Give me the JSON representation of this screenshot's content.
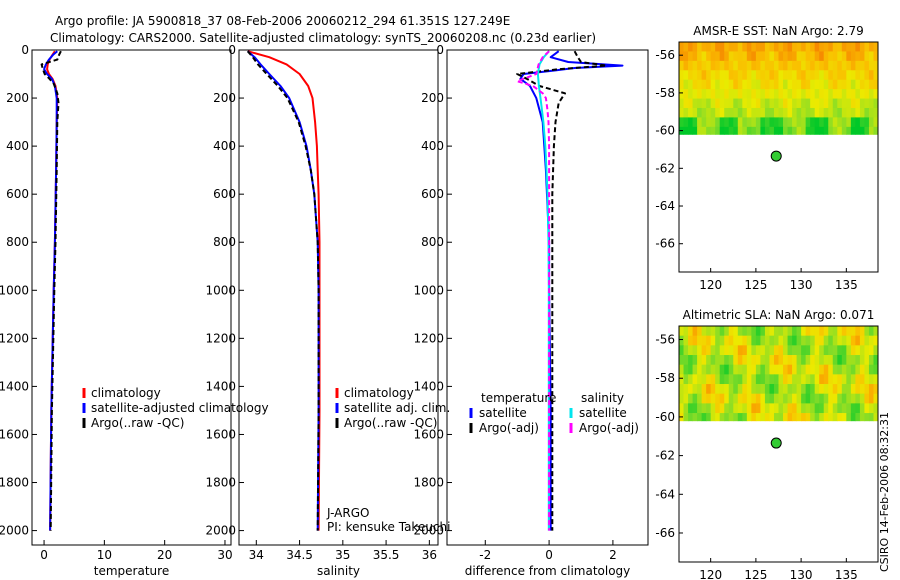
{
  "header": {
    "line1": "Argo profile: JA 5900818_37 08-Feb-2006 20060212_294 61.351S 127.249E",
    "line2": "Climatology: CARS2000. Satellite-adjusted climatology: synTS_20060208.nc (0.23d earlier)"
  },
  "credit": "CSIRO 14-Feb-2006 08:32:31",
  "colors": {
    "climatology": "#ff0000",
    "satellite": "#0000ff",
    "argo": "#000000",
    "salinity_satellite": "#00e5ee",
    "salinity_argo": "#ff00ff",
    "map_masked": "#ffffff",
    "float_marker": "#33cc33"
  },
  "chart_data": [
    {
      "type": "line",
      "id": "temperature",
      "xlabel": "temperature",
      "ylabel": "",
      "xlim": [
        -2,
        31
      ],
      "ylim": [
        2060,
        0
      ],
      "xticks": [
        0,
        10,
        20,
        30
      ],
      "yticks": [
        0,
        200,
        400,
        600,
        800,
        1000,
        1200,
        1400,
        1600,
        1800,
        2000
      ],
      "series": [
        {
          "name": "climatology",
          "color": "#ff0000",
          "dash": "",
          "depth": [
            5,
            20,
            40,
            60,
            80,
            100,
            120,
            150,
            200,
            300,
            500,
            800,
            1000,
            1500,
            2000
          ],
          "values": [
            1.8,
            1.4,
            0.9,
            0.6,
            0.5,
            0.8,
            1.4,
            1.9,
            2.2,
            2.1,
            2.0,
            1.8,
            1.6,
            1.2,
            1.0
          ]
        },
        {
          "name": "satellite-adjusted climatology",
          "color": "#0000ff",
          "dash": "",
          "depth": [
            5,
            20,
            40,
            60,
            80,
            100,
            120,
            150,
            200,
            300,
            500,
            800,
            1000,
            1500,
            2000
          ],
          "values": [
            2.2,
            1.5,
            0.8,
            0.3,
            0.0,
            0.5,
            1.3,
            1.8,
            2.1,
            2.1,
            2.0,
            1.8,
            1.6,
            1.2,
            1.0
          ]
        },
        {
          "name": "Argo(..raw -QC)",
          "color": "#000000",
          "dash": "5,3",
          "depth": [
            5,
            20,
            40,
            60,
            80,
            100,
            120,
            140,
            160,
            180,
            220,
            300,
            500,
            800,
            1000,
            1500,
            2000
          ],
          "values": [
            2.8,
            2.5,
            2.2,
            -0.4,
            -0.2,
            0.1,
            0.9,
            1.6,
            1.9,
            2.2,
            2.4,
            2.2,
            2.1,
            1.9,
            1.7,
            1.3,
            1.1
          ]
        }
      ],
      "legend": {
        "placement": "lower-right",
        "entries": [
          "climatology",
          "satellite-adjusted climatology",
          "Argo(..raw -QC)"
        ]
      }
    },
    {
      "type": "line",
      "id": "salinity",
      "xlabel": "salinity",
      "ylabel": "",
      "xlim": [
        33.8,
        36.1
      ],
      "ylim": [
        2060,
        0
      ],
      "xticks": [
        34,
        34.5,
        35,
        35.5,
        36
      ],
      "yticks": [
        0,
        200,
        400,
        600,
        800,
        1000,
        1200,
        1400,
        1600,
        1800,
        2000
      ],
      "series": [
        {
          "name": "climatology",
          "color": "#ff0000",
          "dash": "",
          "depth": [
            5,
            30,
            60,
            100,
            150,
            200,
            300,
            400,
            500,
            600,
            800,
            1000,
            1500,
            2000
          ],
          "values": [
            33.9,
            34.15,
            34.35,
            34.5,
            34.6,
            34.65,
            34.68,
            34.7,
            34.71,
            34.72,
            34.73,
            34.73,
            34.73,
            34.72
          ]
        },
        {
          "name": "satellite adj. clim.",
          "color": "#0000ff",
          "dash": "",
          "depth": [
            5,
            30,
            60,
            100,
            150,
            200,
            300,
            400,
            500,
            600,
            800,
            1000,
            1500,
            2000
          ],
          "values": [
            33.9,
            33.98,
            34.05,
            34.15,
            34.28,
            34.38,
            34.5,
            34.58,
            34.63,
            34.67,
            34.71,
            34.72,
            34.72,
            34.71
          ]
        },
        {
          "name": "Argo(..raw -QC)",
          "color": "#000000",
          "dash": "5,3",
          "depth": [
            5,
            30,
            60,
            100,
            150,
            200,
            300,
            400,
            500,
            600,
            800,
            1000,
            1500,
            2000
          ],
          "values": [
            33.9,
            33.96,
            34.02,
            34.12,
            34.25,
            34.36,
            34.49,
            34.57,
            34.63,
            34.67,
            34.71,
            34.72,
            34.72,
            34.71
          ]
        }
      ],
      "legend": {
        "placement": "lower-right",
        "entries": [
          "climatology",
          "satellite adj. clim.",
          "Argo(..raw -QC)"
        ]
      },
      "annotations": [
        "J-ARGO",
        "PI: kensuke Takeuchi"
      ]
    },
    {
      "type": "line",
      "id": "difference",
      "xlabel": "difference from climatology",
      "ylabel": "",
      "xlim": [
        -3.2,
        3.1
      ],
      "ylim": [
        2060,
        0
      ],
      "xticks": [
        -2,
        0,
        2
      ],
      "yticks": [
        0,
        200,
        400,
        600,
        800,
        1000,
        1200,
        1400,
        1600,
        1800,
        2000
      ],
      "series": [
        {
          "name": "temperature satellite",
          "color": "#0000ff",
          "dash": "",
          "depth": [
            5,
            30,
            50,
            65,
            75,
            85,
            100,
            120,
            150,
            200,
            300,
            500,
            800,
            1000,
            1500,
            2000
          ],
          "values": [
            0.3,
            0.05,
            0.6,
            2.3,
            0.8,
            0.2,
            -0.8,
            -0.9,
            -0.6,
            -0.4,
            -0.2,
            -0.1,
            0.0,
            0.0,
            0.05,
            0.05
          ]
        },
        {
          "name": "temperature Argo(-adj)",
          "color": "#000000",
          "dash": "5,3",
          "depth": [
            5,
            30,
            50,
            65,
            80,
            100,
            120,
            150,
            180,
            220,
            260,
            300,
            400,
            600,
            1000,
            1500,
            2000
          ],
          "values": [
            0.8,
            0.9,
            1.0,
            1.8,
            0.3,
            -1.0,
            -0.7,
            -0.3,
            0.5,
            0.3,
            0.25,
            0.2,
            0.15,
            0.1,
            0.1,
            0.1,
            0.1
          ]
        },
        {
          "name": "salinity satellite",
          "color": "#00e5ee",
          "dash": "",
          "depth": [
            5,
            30,
            60,
            100,
            150,
            200,
            300,
            400,
            500,
            600,
            800,
            1000,
            1500,
            2000
          ],
          "values": [
            0.0,
            -0.17,
            -0.3,
            -0.35,
            -0.32,
            -0.27,
            -0.18,
            -0.12,
            -0.08,
            -0.05,
            -0.02,
            -0.01,
            -0.01,
            -0.01
          ]
        },
        {
          "name": "salinity Argo(-adj)",
          "color": "#ff00ff",
          "dash": "5,3",
          "depth": [
            5,
            30,
            60,
            100,
            130,
            150,
            180,
            200,
            250,
            300,
            400,
            600,
            800,
            1000,
            1500,
            2000
          ],
          "values": [
            0.0,
            -0.2,
            -0.33,
            -0.4,
            -1.0,
            -0.5,
            -0.2,
            -0.1,
            -0.05,
            -0.02,
            0.0,
            0.0,
            0.0,
            0.0,
            0.0,
            0.0
          ]
        }
      ],
      "legend": {
        "placement": "lower-center",
        "headers": [
          "temperature",
          "salinity"
        ],
        "entries": [
          "satellite",
          "Argo(-adj)",
          "satellite",
          "Argo(-adj)"
        ]
      }
    },
    {
      "type": "heatmap",
      "id": "sst-map",
      "title": "AMSR-E SST: NaN Argo: 2.79",
      "xlim": [
        116.5,
        138.5
      ],
      "ylim": [
        -67.5,
        -55.3
      ],
      "xticks": [
        120,
        125,
        130,
        135
      ],
      "yticks": [
        -56,
        -58,
        -60,
        -62,
        -64,
        -66
      ],
      "data_southern_limit": -60.2,
      "cell_size_deg": 0.5,
      "float_position": {
        "lon": 127.249,
        "lat": -61.351
      },
      "colormap": "green-yellow-orange"
    },
    {
      "type": "heatmap",
      "id": "sla-map",
      "title": "Altimetric SLA: NaN Argo: 0.071",
      "xlim": [
        116.5,
        138.5
      ],
      "ylim": [
        -67.5,
        -55.3
      ],
      "xticks": [
        120,
        125,
        130,
        135
      ],
      "yticks": [
        -56,
        -58,
        -60,
        -62,
        -64,
        -66
      ],
      "data_southern_limit": -60.2,
      "cell_size_deg": 0.5,
      "float_position": {
        "lon": 127.249,
        "lat": -61.351
      },
      "colormap": "green-yellow-orange"
    }
  ]
}
